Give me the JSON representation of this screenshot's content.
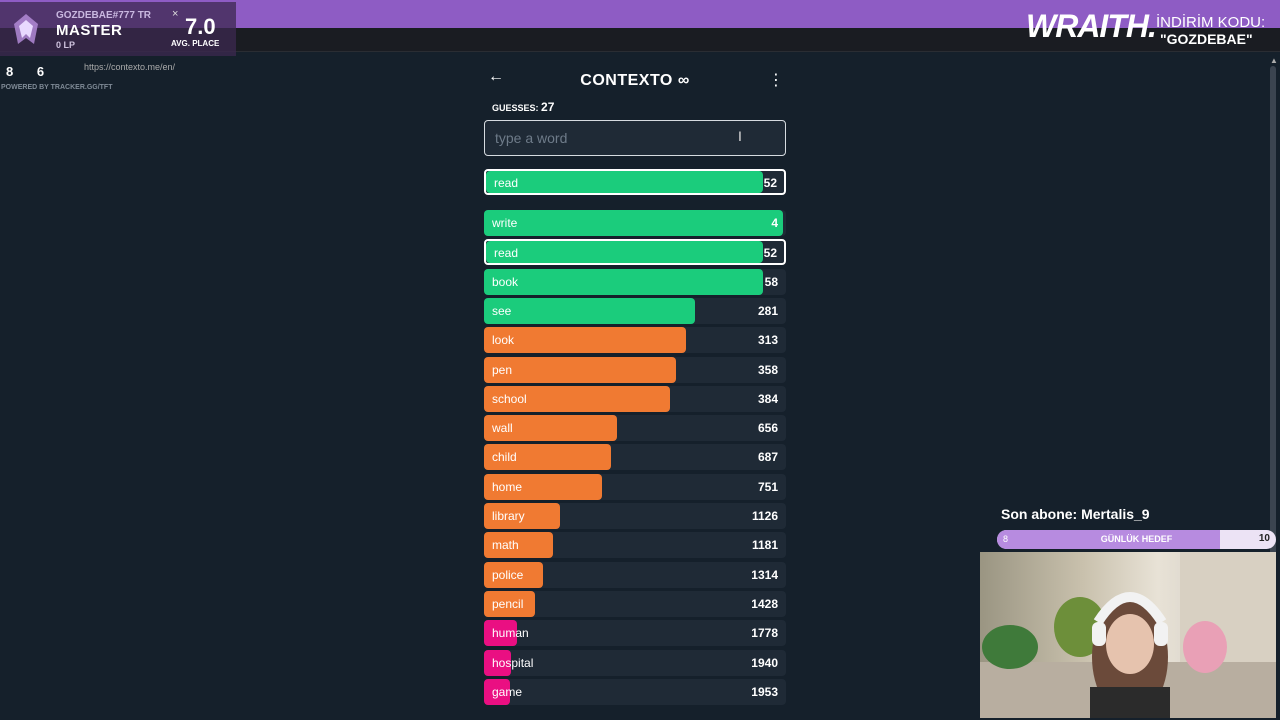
{
  "overlay": {
    "player_name": "GOZDEBAE#777 TR",
    "rank": "MASTER",
    "lp": "0 LP",
    "avg_place": "7.0",
    "avg_label": "AVG. PLACE",
    "url_ghost": "https://contexto.me/en/",
    "tab_close": "×"
  },
  "scores": "8 6",
  "powered_by": "POWERED BY TRACKER.GG/TFT",
  "brand": {
    "logo": "WRAITH.",
    "code_label": "İNDİRİM KODU:",
    "code": "\"GOZDEBAE\""
  },
  "game": {
    "title": "CONTEXTO ∞",
    "back_icon": "←",
    "menu_icon": "⋮",
    "guesses_label": "GUESSES:",
    "guesses_count": "27",
    "input_placeholder": "type a word",
    "last_guess": {
      "word": "read",
      "rank": "52",
      "fill": 0.93,
      "color": "#1bcc7c"
    },
    "list": [
      {
        "word": "write",
        "rank": "4",
        "fill": 0.99,
        "color": "#1bcc7c"
      },
      {
        "word": "read",
        "rank": "52",
        "fill": 0.93,
        "color": "#1bcc7c",
        "selected": true
      },
      {
        "word": "book",
        "rank": "58",
        "fill": 0.925,
        "color": "#1bcc7c"
      },
      {
        "word": "see",
        "rank": "281",
        "fill": 0.7,
        "color": "#1bcc7c"
      },
      {
        "word": "look",
        "rank": "313",
        "fill": 0.67,
        "color": "#f07a32"
      },
      {
        "word": "pen",
        "rank": "358",
        "fill": 0.635,
        "color": "#f07a32"
      },
      {
        "word": "school",
        "rank": "384",
        "fill": 0.615,
        "color": "#f07a32"
      },
      {
        "word": "wall",
        "rank": "656",
        "fill": 0.44,
        "color": "#f07a32"
      },
      {
        "word": "child",
        "rank": "687",
        "fill": 0.42,
        "color": "#f07a32"
      },
      {
        "word": "home",
        "rank": "751",
        "fill": 0.39,
        "color": "#f07a32"
      },
      {
        "word": "library",
        "rank": "1126",
        "fill": 0.25,
        "color": "#f07a32"
      },
      {
        "word": "math",
        "rank": "1181",
        "fill": 0.23,
        "color": "#f07a32"
      },
      {
        "word": "police",
        "rank": "1314",
        "fill": 0.195,
        "color": "#f07a32"
      },
      {
        "word": "pencil",
        "rank": "1428",
        "fill": 0.17,
        "color": "#f07a32"
      },
      {
        "word": "human",
        "rank": "1778",
        "fill": 0.11,
        "color": "#ea0f82"
      },
      {
        "word": "hospital",
        "rank": "1940",
        "fill": 0.09,
        "color": "#ea0f82"
      },
      {
        "word": "game",
        "rank": "1953",
        "fill": 0.085,
        "color": "#ea0f82"
      }
    ]
  },
  "stream": {
    "subscriber": "Son abone: Mertalis_9",
    "goal_label": "GÜNLÜK HEDEF",
    "goal_current": "8",
    "goal_target": "10",
    "goal_fill": 0.8
  }
}
